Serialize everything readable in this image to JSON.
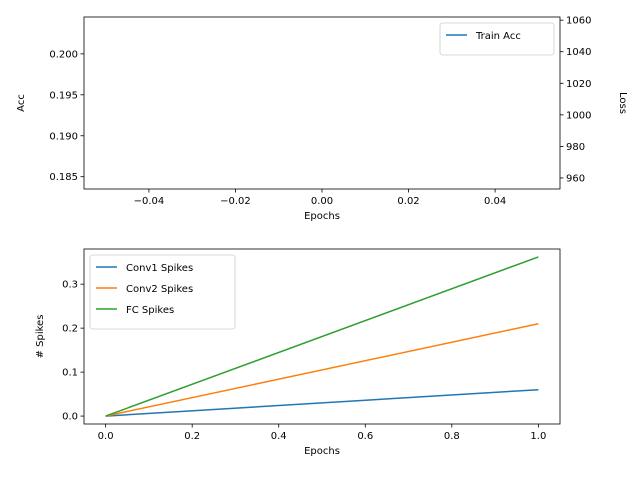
{
  "chart_data": [
    {
      "type": "line",
      "xlabel": "Epochs",
      "ylabel": "Acc",
      "ylabel_right": "Loss",
      "xlim": [
        -0.055,
        0.055
      ],
      "ylim": [
        0.1835,
        0.2045
      ],
      "ylim_right": [
        953,
        1062
      ],
      "xticks": [
        -0.04,
        -0.02,
        0.0,
        0.02,
        0.04
      ],
      "xtick_labels": [
        "−0.04",
        "−0.02",
        "0.00",
        "0.02",
        "0.04"
      ],
      "yticks": [
        0.185,
        0.19,
        0.195,
        0.2
      ],
      "ytick_labels": [
        "0.185",
        "0.190",
        "0.195",
        "0.200"
      ],
      "yticks_right": [
        960,
        980,
        1000,
        1020,
        1040,
        1060
      ],
      "ytick_labels_right": [
        "960",
        "980",
        "1000",
        "1020",
        "1040",
        "1060"
      ],
      "legend": "top-right",
      "grid": false,
      "series": [
        {
          "name": "Train Acc",
          "color": "#1f77b4",
          "x": [],
          "y": []
        }
      ]
    },
    {
      "type": "line",
      "xlabel": "Epochs",
      "ylabel": "# Spikes",
      "xlim": [
        -0.05,
        1.05
      ],
      "ylim": [
        -0.018,
        0.38
      ],
      "xticks": [
        0.0,
        0.2,
        0.4,
        0.6,
        0.8,
        1.0
      ],
      "xtick_labels": [
        "0.0",
        "0.2",
        "0.4",
        "0.6",
        "0.8",
        "1.0"
      ],
      "yticks": [
        0.0,
        0.1,
        0.2,
        0.3
      ],
      "ytick_labels": [
        "0.0",
        "0.1",
        "0.2",
        "0.3"
      ],
      "legend": "top-left",
      "grid": false,
      "series": [
        {
          "name": "Conv1 Spikes",
          "color": "#1f77b4",
          "x": [
            0,
            1
          ],
          "y": [
            0.0,
            0.06
          ]
        },
        {
          "name": "Conv2 Spikes",
          "color": "#ff7f0e",
          "x": [
            0,
            1
          ],
          "y": [
            0.0,
            0.21
          ]
        },
        {
          "name": "FC Spikes",
          "color": "#2ca02c",
          "x": [
            0,
            1
          ],
          "y": [
            0.0,
            0.362
          ]
        }
      ]
    }
  ]
}
